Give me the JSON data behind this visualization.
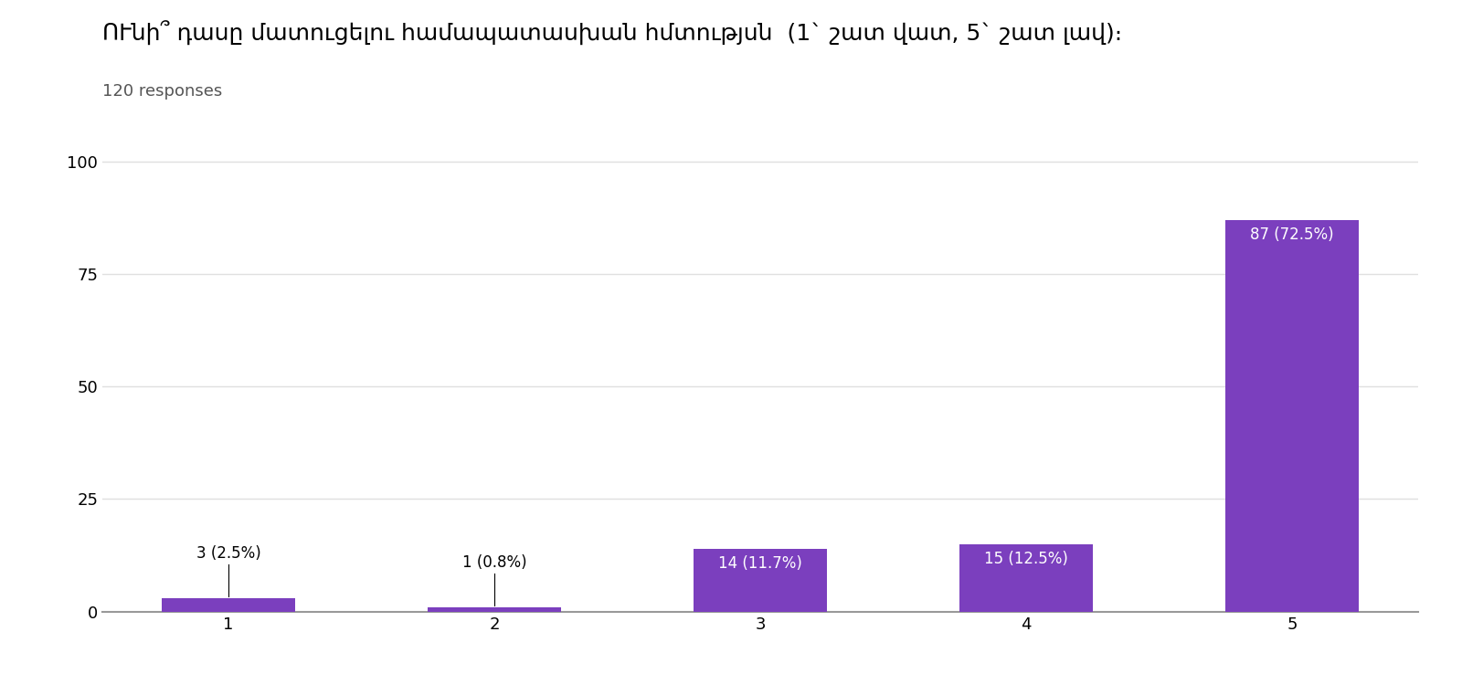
{
  "title": "ՈՒնի՞ դասը մատուցելու համապատասխան հմտությuն  (1` շատ վատ, 5` շատ լավ)։",
  "subtitle": "120 responses",
  "categories": [
    "1",
    "2",
    "3",
    "4",
    "5"
  ],
  "values": [
    3,
    1,
    14,
    15,
    87
  ],
  "percentages": [
    "2.5%",
    "0.8%",
    "11.7%",
    "12.5%",
    "72.5%"
  ],
  "bar_color": "#7B3FBE",
  "ylim": [
    0,
    105
  ],
  "yticks": [
    0,
    25,
    50,
    75,
    100
  ],
  "background_color": "#ffffff",
  "grid_color": "#e0e0e0",
  "title_fontsize": 18,
  "subtitle_fontsize": 13,
  "tick_fontsize": 13,
  "label_fontsize": 12
}
